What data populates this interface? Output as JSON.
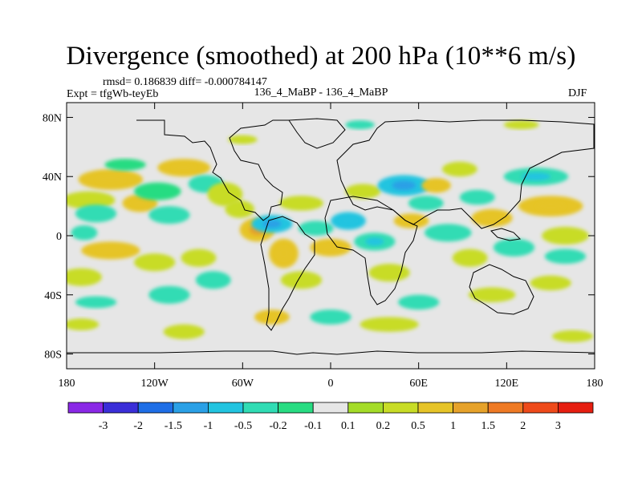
{
  "title": "Divergence (smoothed) at 200 hPa (10**6 m/s)",
  "stats_line": "rmsd= 0.186839 diff= -0.000784147",
  "experiment": "Expt = tfgWb-teyEb",
  "difference": "136_4_MaBP - 136_4_MaBP",
  "season": "DJF",
  "lat_labels": [
    "80N",
    "40N",
    "0",
    "40S",
    "80S"
  ],
  "lon_labels": [
    "180",
    "120W",
    "60W",
    "0",
    "60E",
    "120E",
    "180"
  ],
  "colorbar": {
    "colors": [
      "#8a28e6",
      "#3a2ed8",
      "#1e6ee6",
      "#2aa0e6",
      "#22c4e0",
      "#30dcb4",
      "#28dc82",
      "#e6e6e6",
      "#a4dc28",
      "#c8dc26",
      "#e6c428",
      "#e6a22a",
      "#ee7a24",
      "#ee4a1a",
      "#e61e10"
    ],
    "labels": [
      "-3",
      "-2",
      "-1.5",
      "-1",
      "-0.5",
      "-0.2",
      "-0.1",
      "0.1",
      "0.2",
      "0.5",
      "1",
      "1.5",
      "2",
      "3"
    ]
  },
  "field_blobs": [
    {
      "lon": -150,
      "lat": 38,
      "rx": 22,
      "ry": 7,
      "value": 0.7
    },
    {
      "lon": -165,
      "lat": 24,
      "rx": 18,
      "ry": 6,
      "value": 0.4
    },
    {
      "lon": -160,
      "lat": 15,
      "rx": 14,
      "ry": 6,
      "value": -0.3
    },
    {
      "lon": -168,
      "lat": 2,
      "rx": 9,
      "ry": 5,
      "value": -0.3
    },
    {
      "lon": -140,
      "lat": 48,
      "rx": 14,
      "ry": 4,
      "value": -0.2
    },
    {
      "lon": -130,
      "lat": 22,
      "rx": 12,
      "ry": 6,
      "value": 0.5
    },
    {
      "lon": -118,
      "lat": 30,
      "rx": 16,
      "ry": 6,
      "value": -0.2
    },
    {
      "lon": -110,
      "lat": 14,
      "rx": 14,
      "ry": 6,
      "value": -0.25
    },
    {
      "lon": -100,
      "lat": 46,
      "rx": 18,
      "ry": 6,
      "value": 0.5
    },
    {
      "lon": -85,
      "lat": 35,
      "rx": 12,
      "ry": 6,
      "value": -0.3
    },
    {
      "lon": -72,
      "lat": 28,
      "rx": 12,
      "ry": 8,
      "value": 0.4
    },
    {
      "lon": -62,
      "lat": 18,
      "rx": 10,
      "ry": 6,
      "value": 0.3
    },
    {
      "lon": -50,
      "lat": 4,
      "rx": 12,
      "ry": 8,
      "value": 0.8
    },
    {
      "lon": -40,
      "lat": 8,
      "rx": 14,
      "ry": 6,
      "value": -0.8
    },
    {
      "lon": -32,
      "lat": -12,
      "rx": 10,
      "ry": 10,
      "value": 0.6
    },
    {
      "lon": -20,
      "lat": 22,
      "rx": 15,
      "ry": 5,
      "value": 0.4
    },
    {
      "lon": -10,
      "lat": 5,
      "rx": 12,
      "ry": 5,
      "value": -0.4
    },
    {
      "lon": 0,
      "lat": -8,
      "rx": 14,
      "ry": 6,
      "value": 0.5
    },
    {
      "lon": 12,
      "lat": 10,
      "rx": 12,
      "ry": 6,
      "value": -0.6
    },
    {
      "lon": 22,
      "lat": 30,
      "rx": 12,
      "ry": 5,
      "value": 0.4
    },
    {
      "lon": 30,
      "lat": -4,
      "rx": 14,
      "ry": 6,
      "value": -0.5
    },
    {
      "lon": 40,
      "lat": -25,
      "rx": 14,
      "ry": 6,
      "value": 0.4
    },
    {
      "lon": 50,
      "lat": 34,
      "rx": 18,
      "ry": 7,
      "value": -0.8
    },
    {
      "lon": 55,
      "lat": 10,
      "rx": 12,
      "ry": 5,
      "value": 0.5
    },
    {
      "lon": 65,
      "lat": 22,
      "rx": 12,
      "ry": 5,
      "value": -0.3
    },
    {
      "lon": 72,
      "lat": 34,
      "rx": 10,
      "ry": 5,
      "value": 0.6
    },
    {
      "lon": 80,
      "lat": 2,
      "rx": 16,
      "ry": 6,
      "value": -0.4
    },
    {
      "lon": 88,
      "lat": 45,
      "rx": 12,
      "ry": 5,
      "value": 0.4
    },
    {
      "lon": 95,
      "lat": -15,
      "rx": 12,
      "ry": 6,
      "value": 0.4
    },
    {
      "lon": 100,
      "lat": 26,
      "rx": 12,
      "ry": 5,
      "value": -0.3
    },
    {
      "lon": 110,
      "lat": 12,
      "rx": 14,
      "ry": 6,
      "value": 0.5
    },
    {
      "lon": 125,
      "lat": -8,
      "rx": 14,
      "ry": 6,
      "value": -0.4
    },
    {
      "lon": 140,
      "lat": 40,
      "rx": 22,
      "ry": 6,
      "value": -0.5
    },
    {
      "lon": 150,
      "lat": 20,
      "rx": 22,
      "ry": 7,
      "value": 0.6
    },
    {
      "lon": 160,
      "lat": 0,
      "rx": 16,
      "ry": 6,
      "value": 0.4
    },
    {
      "lon": 160,
      "lat": -14,
      "rx": 14,
      "ry": 5,
      "value": -0.3
    },
    {
      "lon": 150,
      "lat": -32,
      "rx": 14,
      "ry": 5,
      "value": 0.4
    },
    {
      "lon": -150,
      "lat": -10,
      "rx": 20,
      "ry": 6,
      "value": 0.5
    },
    {
      "lon": -170,
      "lat": -28,
      "rx": 14,
      "ry": 6,
      "value": 0.4
    },
    {
      "lon": -160,
      "lat": -45,
      "rx": 14,
      "ry": 4,
      "value": -0.3
    },
    {
      "lon": -120,
      "lat": -18,
      "rx": 14,
      "ry": 6,
      "value": 0.4
    },
    {
      "lon": -110,
      "lat": -40,
      "rx": 14,
      "ry": 6,
      "value": -0.4
    },
    {
      "lon": -90,
      "lat": -15,
      "rx": 12,
      "ry": 6,
      "value": 0.4
    },
    {
      "lon": -80,
      "lat": -30,
      "rx": 12,
      "ry": 6,
      "value": -0.3
    },
    {
      "lon": -20,
      "lat": -30,
      "rx": 14,
      "ry": 6,
      "value": 0.4
    },
    {
      "lon": 0,
      "lat": -55,
      "rx": 14,
      "ry": 5,
      "value": -0.3
    },
    {
      "lon": 40,
      "lat": -60,
      "rx": 20,
      "ry": 5,
      "value": 0.4
    },
    {
      "lon": 60,
      "lat": -45,
      "rx": 14,
      "ry": 5,
      "value": -0.4
    },
    {
      "lon": 110,
      "lat": -40,
      "rx": 16,
      "ry": 5,
      "value": 0.3
    },
    {
      "lon": 165,
      "lat": -68,
      "rx": 14,
      "ry": 4,
      "value": 0.4
    },
    {
      "lon": -170,
      "lat": -60,
      "rx": 12,
      "ry": 4,
      "value": 0.4
    },
    {
      "lon": -100,
      "lat": -65,
      "rx": 14,
      "ry": 5,
      "value": 0.4
    },
    {
      "lon": -40,
      "lat": -55,
      "rx": 12,
      "ry": 5,
      "value": 0.5
    },
    {
      "lon": 20,
      "lat": 75,
      "rx": 10,
      "ry": 3,
      "value": -0.3
    },
    {
      "lon": -60,
      "lat": 65,
      "rx": 10,
      "ry": 3,
      "value": 0.3
    },
    {
      "lon": 130,
      "lat": 75,
      "rx": 12,
      "ry": 3,
      "value": 0.3
    }
  ]
}
